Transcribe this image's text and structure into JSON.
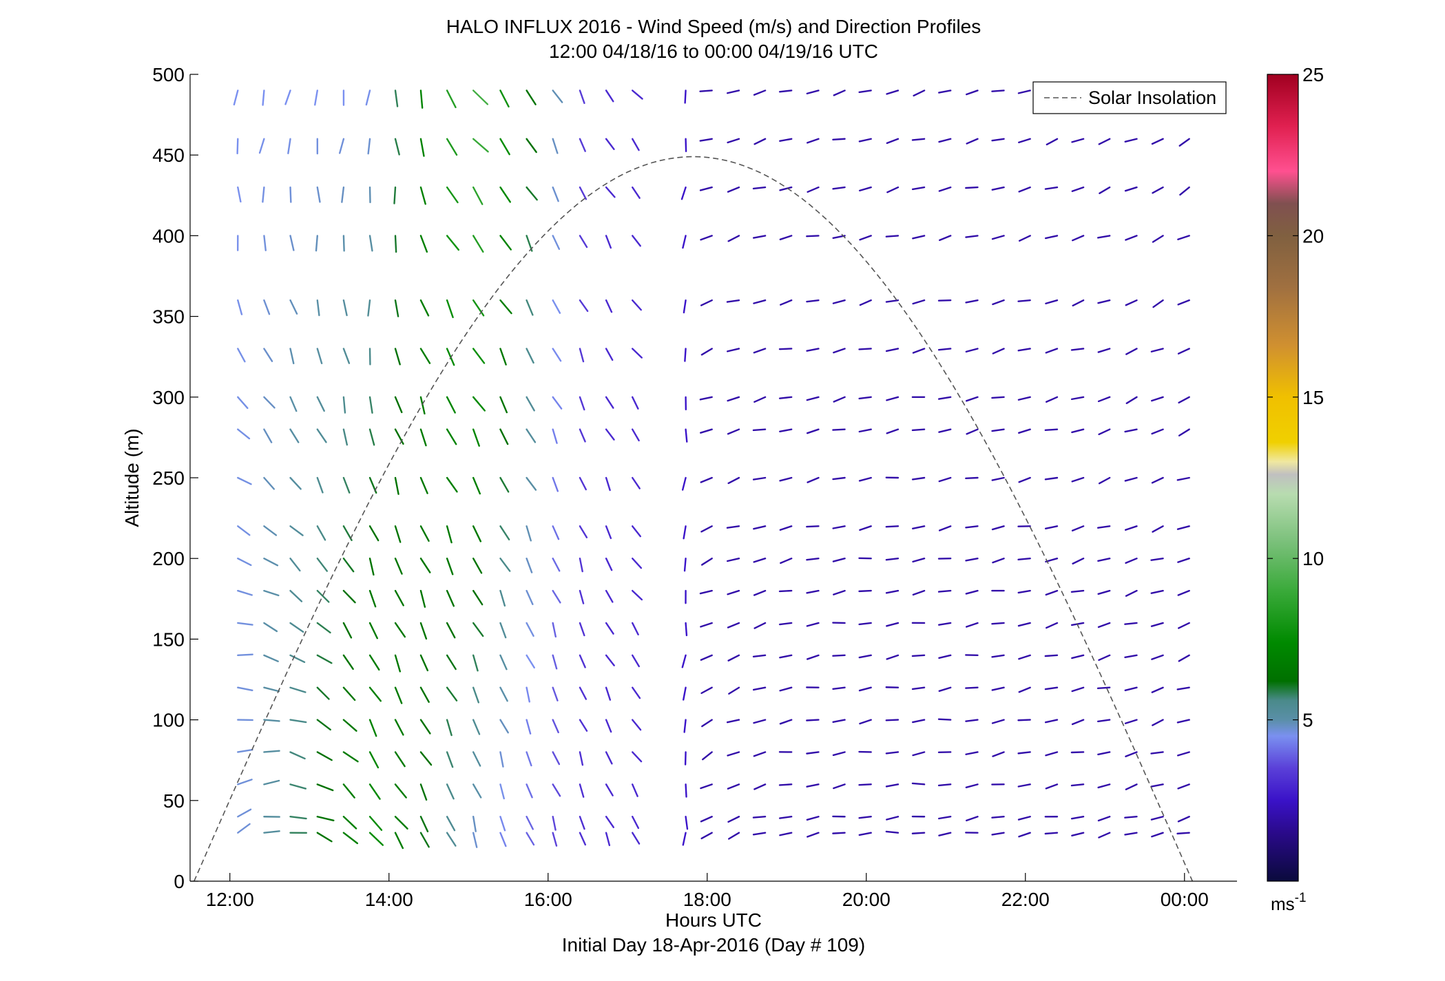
{
  "chart_data": {
    "type": "wind-barb-profile",
    "title": "HALO INFLUX 2016 - Wind Speed (m/s) and Direction Profiles",
    "subtitle": "12:00 04/18/16 to 00:00 04/19/16  UTC",
    "xlabel": "Hours UTC",
    "xlabel2": "Initial Day 18-Apr-2016 (Day # 109)",
    "ylabel": "Altitude (m)",
    "xlim": [
      11.5,
      24.66
    ],
    "ylim": [
      0,
      500
    ],
    "x_ticks": [
      12,
      14,
      16,
      18,
      20,
      22,
      24
    ],
    "x_tick_labels": [
      "12:00",
      "14:00",
      "16:00",
      "18:00",
      "20:00",
      "22:00",
      "00:00"
    ],
    "y_ticks": [
      0,
      50,
      100,
      150,
      200,
      250,
      300,
      350,
      400,
      450,
      500
    ],
    "y_tick_labels": [
      "0",
      "50",
      "100",
      "150",
      "200",
      "250",
      "300",
      "350",
      "400",
      "450",
      "500"
    ],
    "legend": {
      "position": "top-right",
      "entries": [
        "Solar Insolation"
      ]
    },
    "colorbar": {
      "range": [
        0,
        25
      ],
      "ticks": [
        5,
        10,
        15,
        20,
        25
      ],
      "tick_labels": [
        "5",
        "10",
        "15",
        "20",
        "25"
      ],
      "unit_label": "ms",
      "unit_exponent": "-1",
      "stops": [
        [
          0,
          "#0a0a3c"
        ],
        [
          1.5,
          "#2a0a8a"
        ],
        [
          2.5,
          "#3a12c8"
        ],
        [
          3.5,
          "#5a40d8"
        ],
        [
          4.5,
          "#7a90f0"
        ],
        [
          5,
          "#5a8fa8"
        ],
        [
          5.6,
          "#4a8a8a"
        ],
        [
          6.2,
          "#007000"
        ],
        [
          7.4,
          "#008a00"
        ],
        [
          9,
          "#3aaa3a"
        ],
        [
          10.5,
          "#7ac07a"
        ],
        [
          12,
          "#b8dcb0"
        ],
        [
          12.6,
          "#c0c0c0"
        ],
        [
          13,
          "#f0e8a0"
        ],
        [
          13.6,
          "#f0d000"
        ],
        [
          15,
          "#f0c000"
        ],
        [
          16.6,
          "#d09030"
        ],
        [
          18.4,
          "#a07040"
        ],
        [
          20,
          "#806040"
        ],
        [
          21,
          "#805050"
        ],
        [
          22,
          "#ff5090"
        ],
        [
          23.4,
          "#e02050"
        ],
        [
          25,
          "#a00020"
        ]
      ]
    },
    "solar_insolation": {
      "rise": 11.55,
      "set": 24.1,
      "peak_time": 17.8,
      "peak_altitude": 449
    },
    "times": [
      12.1,
      12.43,
      12.76,
      13.1,
      13.43,
      13.76,
      14.08,
      14.4,
      14.73,
      15.06,
      15.4,
      15.73,
      16.06,
      16.4,
      16.73,
      17.06,
      17.4,
      17.73,
      18.06,
      18.4,
      18.73,
      19.06,
      19.4,
      19.73,
      20.06,
      20.4,
      20.73,
      21.06,
      21.4,
      21.73,
      22.06,
      22.4,
      22.73,
      23.06,
      23.4,
      23.73,
      24.06
    ],
    "gap_times": [
      17.4
    ],
    "altitudes": [
      30,
      40,
      60,
      80,
      100,
      120,
      140,
      160,
      180,
      200,
      220,
      250,
      280,
      300,
      330,
      360,
      400,
      430,
      460,
      490
    ],
    "time_keys": [
      12,
      13.75,
      15,
      16.5,
      17.5,
      18,
      19,
      20.5,
      22,
      24
    ],
    "dir_top": [
      195,
      190,
      140,
      155,
      130,
      255,
      255,
      255,
      255,
      240
    ],
    "dir_bottom": [
      60,
      140,
      160,
      160,
      135,
      240,
      260,
      265,
      260,
      255
    ],
    "spd_top": [
      4.5,
      4.5,
      9.5,
      3,
      3,
      2,
      2,
      2,
      2,
      2
    ],
    "spd_bottom": [
      4.5,
      7.5,
      4.8,
      3,
      3,
      2,
      2,
      2,
      2,
      2
    ]
  }
}
